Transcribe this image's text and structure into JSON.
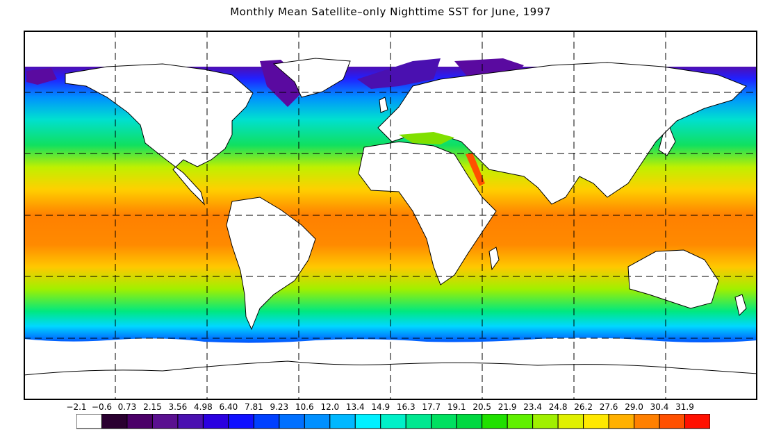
{
  "title": "Monthly Mean Satellite–only Nighttime SST for June, 1997",
  "legend": {
    "ticks": [
      "−2.1",
      "−0.6",
      "0.73",
      "2.15",
      "3.56",
      "4.98",
      "6.40",
      "7.81",
      "9.23",
      "10.6",
      "12.0",
      "13.4",
      "14.9",
      "16.3",
      "17.7",
      "19.1",
      "20.5",
      "21.9",
      "23.4",
      "24.8",
      "26.2",
      "27.6",
      "29.0",
      "30.4",
      "31.9"
    ],
    "colors": [
      "#ffffff",
      "#2a0030",
      "#4b0068",
      "#5a1090",
      "#4a10b0",
      "#2a00e0",
      "#1010ff",
      "#0040ff",
      "#0070ff",
      "#0090ff",
      "#00b8ff",
      "#00f0ff",
      "#00f0c8",
      "#00e890",
      "#00e060",
      "#00d840",
      "#20e000",
      "#60f000",
      "#a0f000",
      "#e0f000",
      "#ffe800",
      "#ffb000",
      "#ff8000",
      "#ff5000",
      "#ff1000"
    ]
  }
}
